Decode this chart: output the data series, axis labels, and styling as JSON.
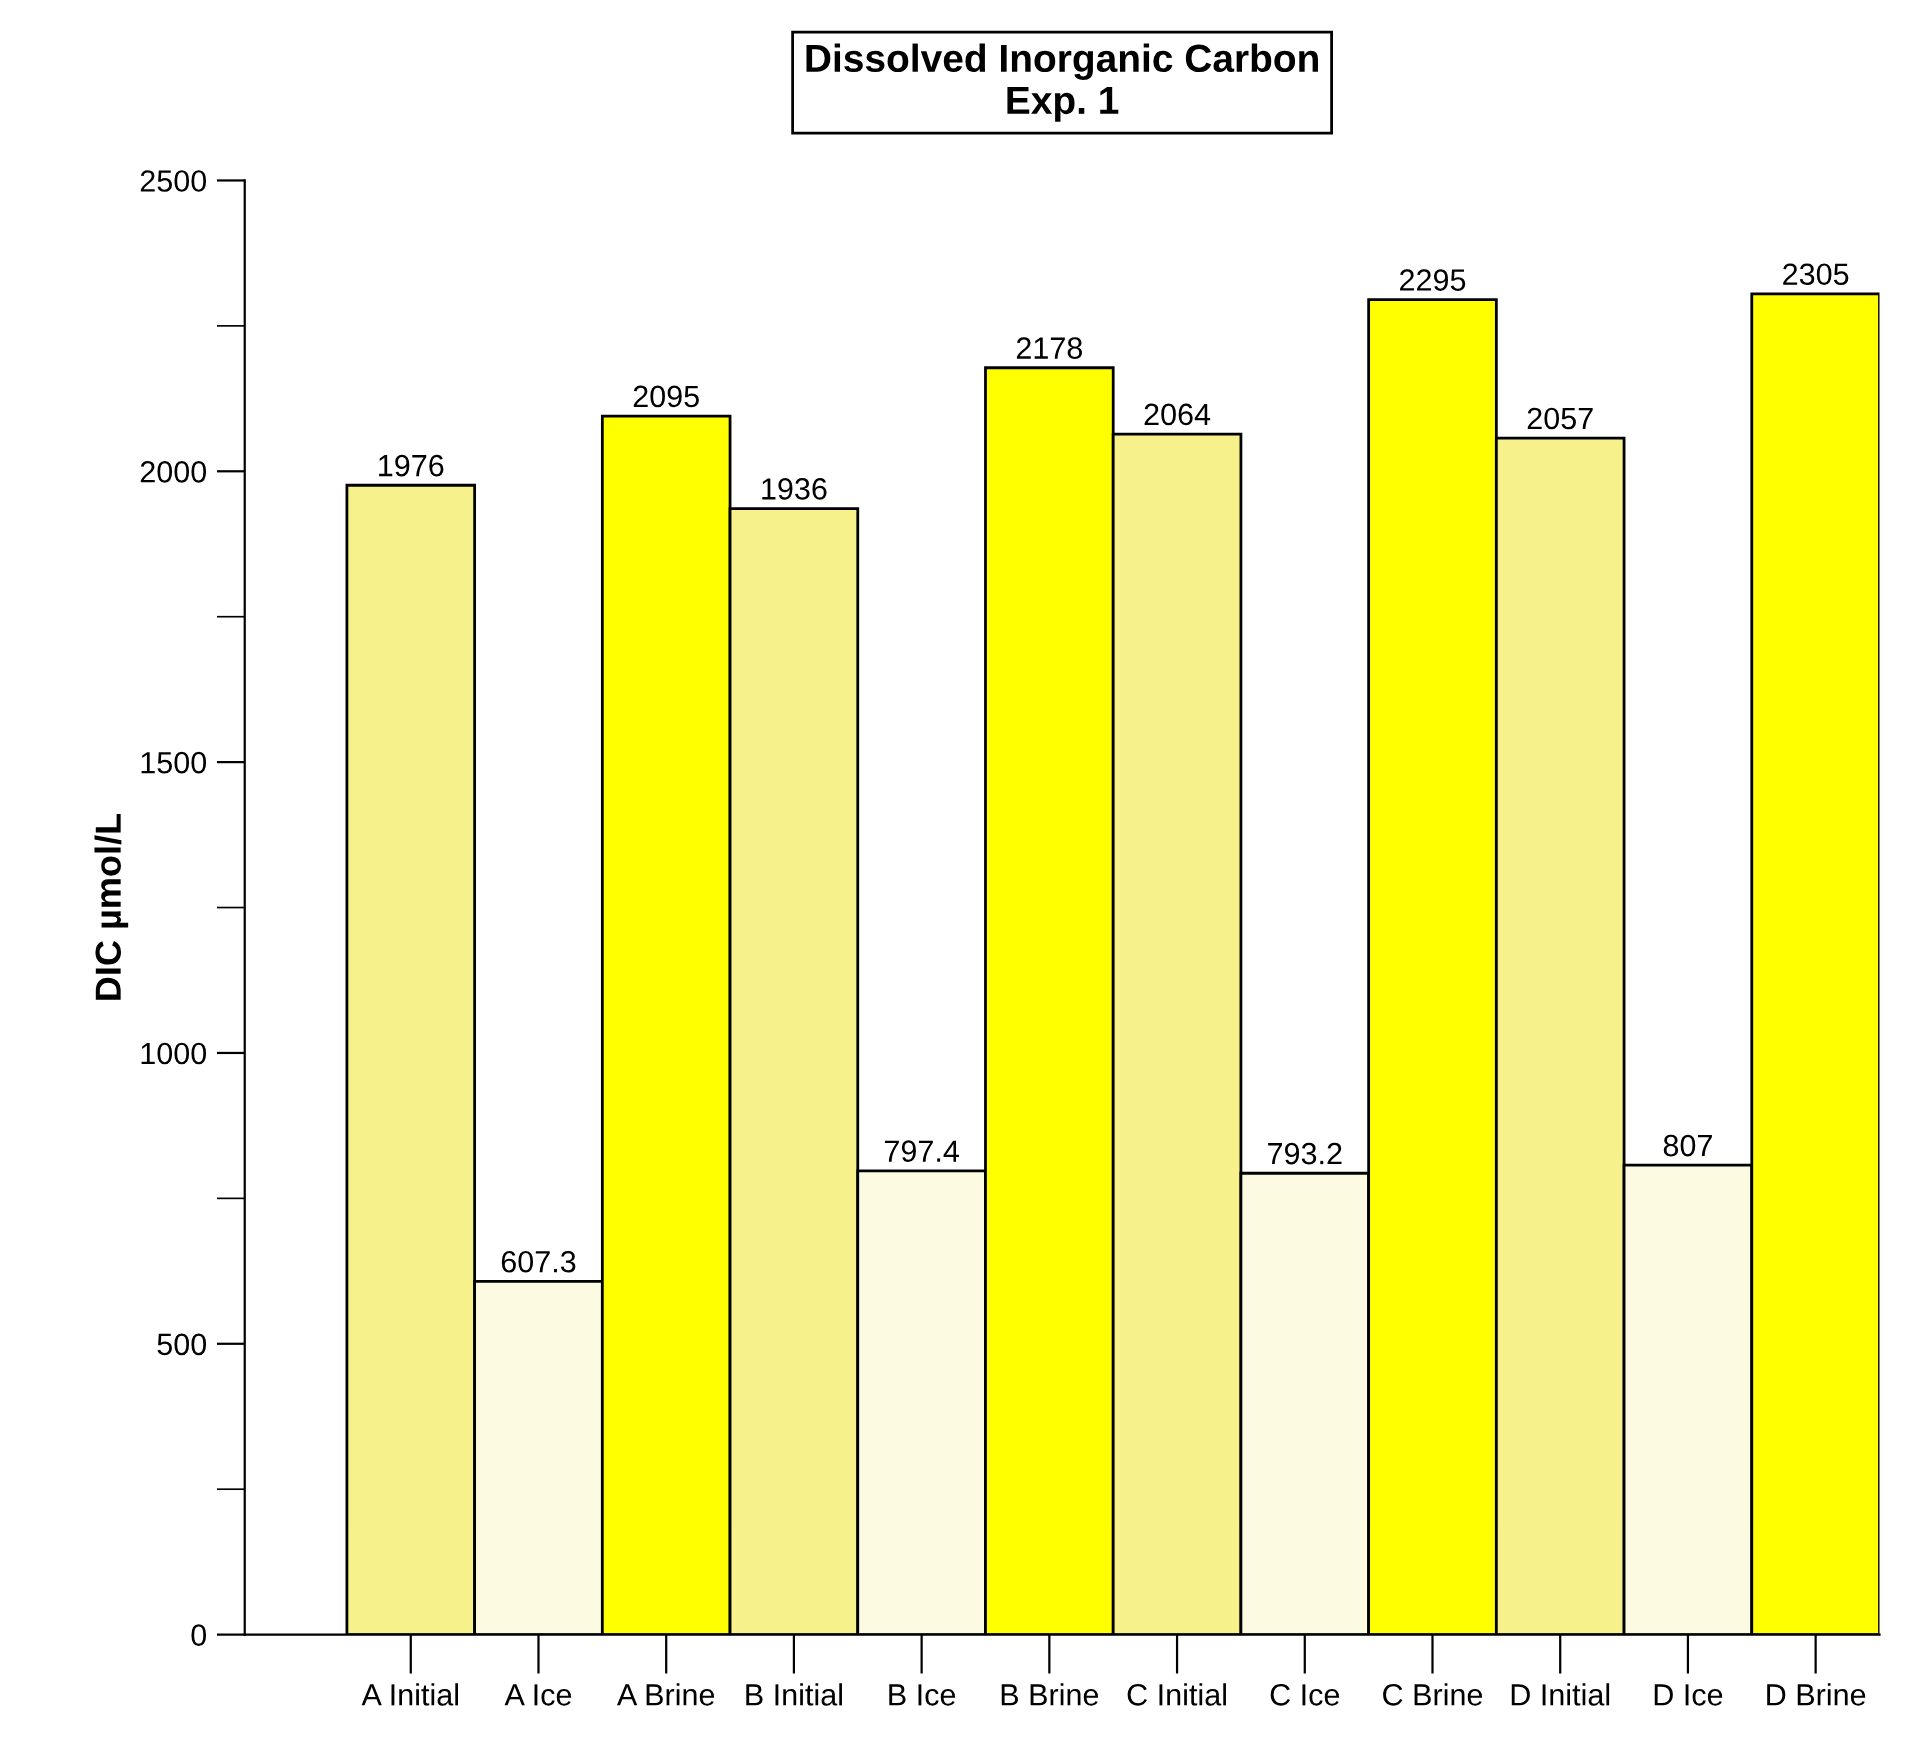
{
  "chart_data": {
    "type": "bar",
    "title": "Dissolved Inorganic Carbon\nExp. 1",
    "ylabel": "DIC µmol/L",
    "categories": [
      "A Initial",
      "A Ice",
      "A Brine",
      "B Initial",
      "B Ice",
      "B Brine",
      "C Initial",
      "C Ice",
      "C Brine",
      "D Initial",
      "D Ice",
      "D Brine"
    ],
    "values": [
      1976,
      607.3,
      2095,
      1936,
      797.4,
      2178,
      2064,
      793.2,
      2295,
      2057,
      807,
      2305
    ],
    "colors": [
      "#f7f18c",
      "#fcfbe2",
      "#ffff00",
      "#f7f18c",
      "#fcfbe2",
      "#ffff00",
      "#f7f18c",
      "#fcfbe2",
      "#ffff00",
      "#f7f18c",
      "#fcfbe2",
      "#ffff00"
    ],
    "data_labels": true,
    "ylim": [
      0,
      2500
    ],
    "yticks": [
      0,
      {
        "value": 250,
        "label": null
      },
      500,
      {
        "value": 750,
        "label": null
      },
      1000,
      {
        "value": 1250,
        "label": null
      },
      1500,
      {
        "value": 1750,
        "label": null
      },
      2000,
      {
        "value": 2250,
        "label": null
      },
      2500
    ],
    "grid": false,
    "legend": false
  }
}
